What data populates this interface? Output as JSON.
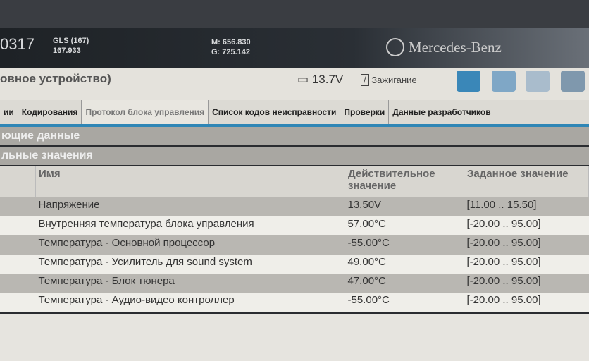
{
  "header": {
    "id": "0317",
    "model": "GLS (167)",
    "model_code": "167.933",
    "m": "M: 656.830",
    "g": "G: 725.142",
    "brand": "Mercedes-Benz"
  },
  "title": {
    "text": "овное устройство)",
    "voltage": "13.7V",
    "ignition": "Зажигание"
  },
  "tabs": [
    {
      "label": "ии"
    },
    {
      "label": "Кодирования"
    },
    {
      "label": "Протокол блока управления",
      "active": true
    },
    {
      "label": "Список кодов неисправности"
    },
    {
      "label": "Проверки"
    },
    {
      "label": "Данные разработчиков"
    }
  ],
  "sections": [
    "ющие данные",
    "льные значения"
  ],
  "table": {
    "headers": [
      "Имя",
      "Действительное значение",
      "Заданное значение"
    ],
    "rows": [
      {
        "name": "Напряжение",
        "value": "13.50V",
        "target": "[11.00 .. 15.50]",
        "status": "ok"
      },
      {
        "name": "Внутренняя температура блока управления",
        "value": "57.00°C",
        "target": "[-20.00 .. 95.00]",
        "status": "ok"
      },
      {
        "name": "Температура - Основной процессор",
        "value": "-55.00°C",
        "target": "[-20.00 .. 95.00]",
        "status": "bad"
      },
      {
        "name": "Температура - Усилитель для sound system",
        "value": "49.00°C",
        "target": "[-20.00 .. 95.00]",
        "status": "ok"
      },
      {
        "name": "Температура - Блок тюнера",
        "value": "47.00°C",
        "target": "[-20.00 .. 95.00]",
        "status": "ok"
      },
      {
        "name": "Температура - Аудио-видео контроллер",
        "value": "-55.00°C",
        "target": "[-20.00 .. 95.00]",
        "status": "bad"
      }
    ]
  }
}
